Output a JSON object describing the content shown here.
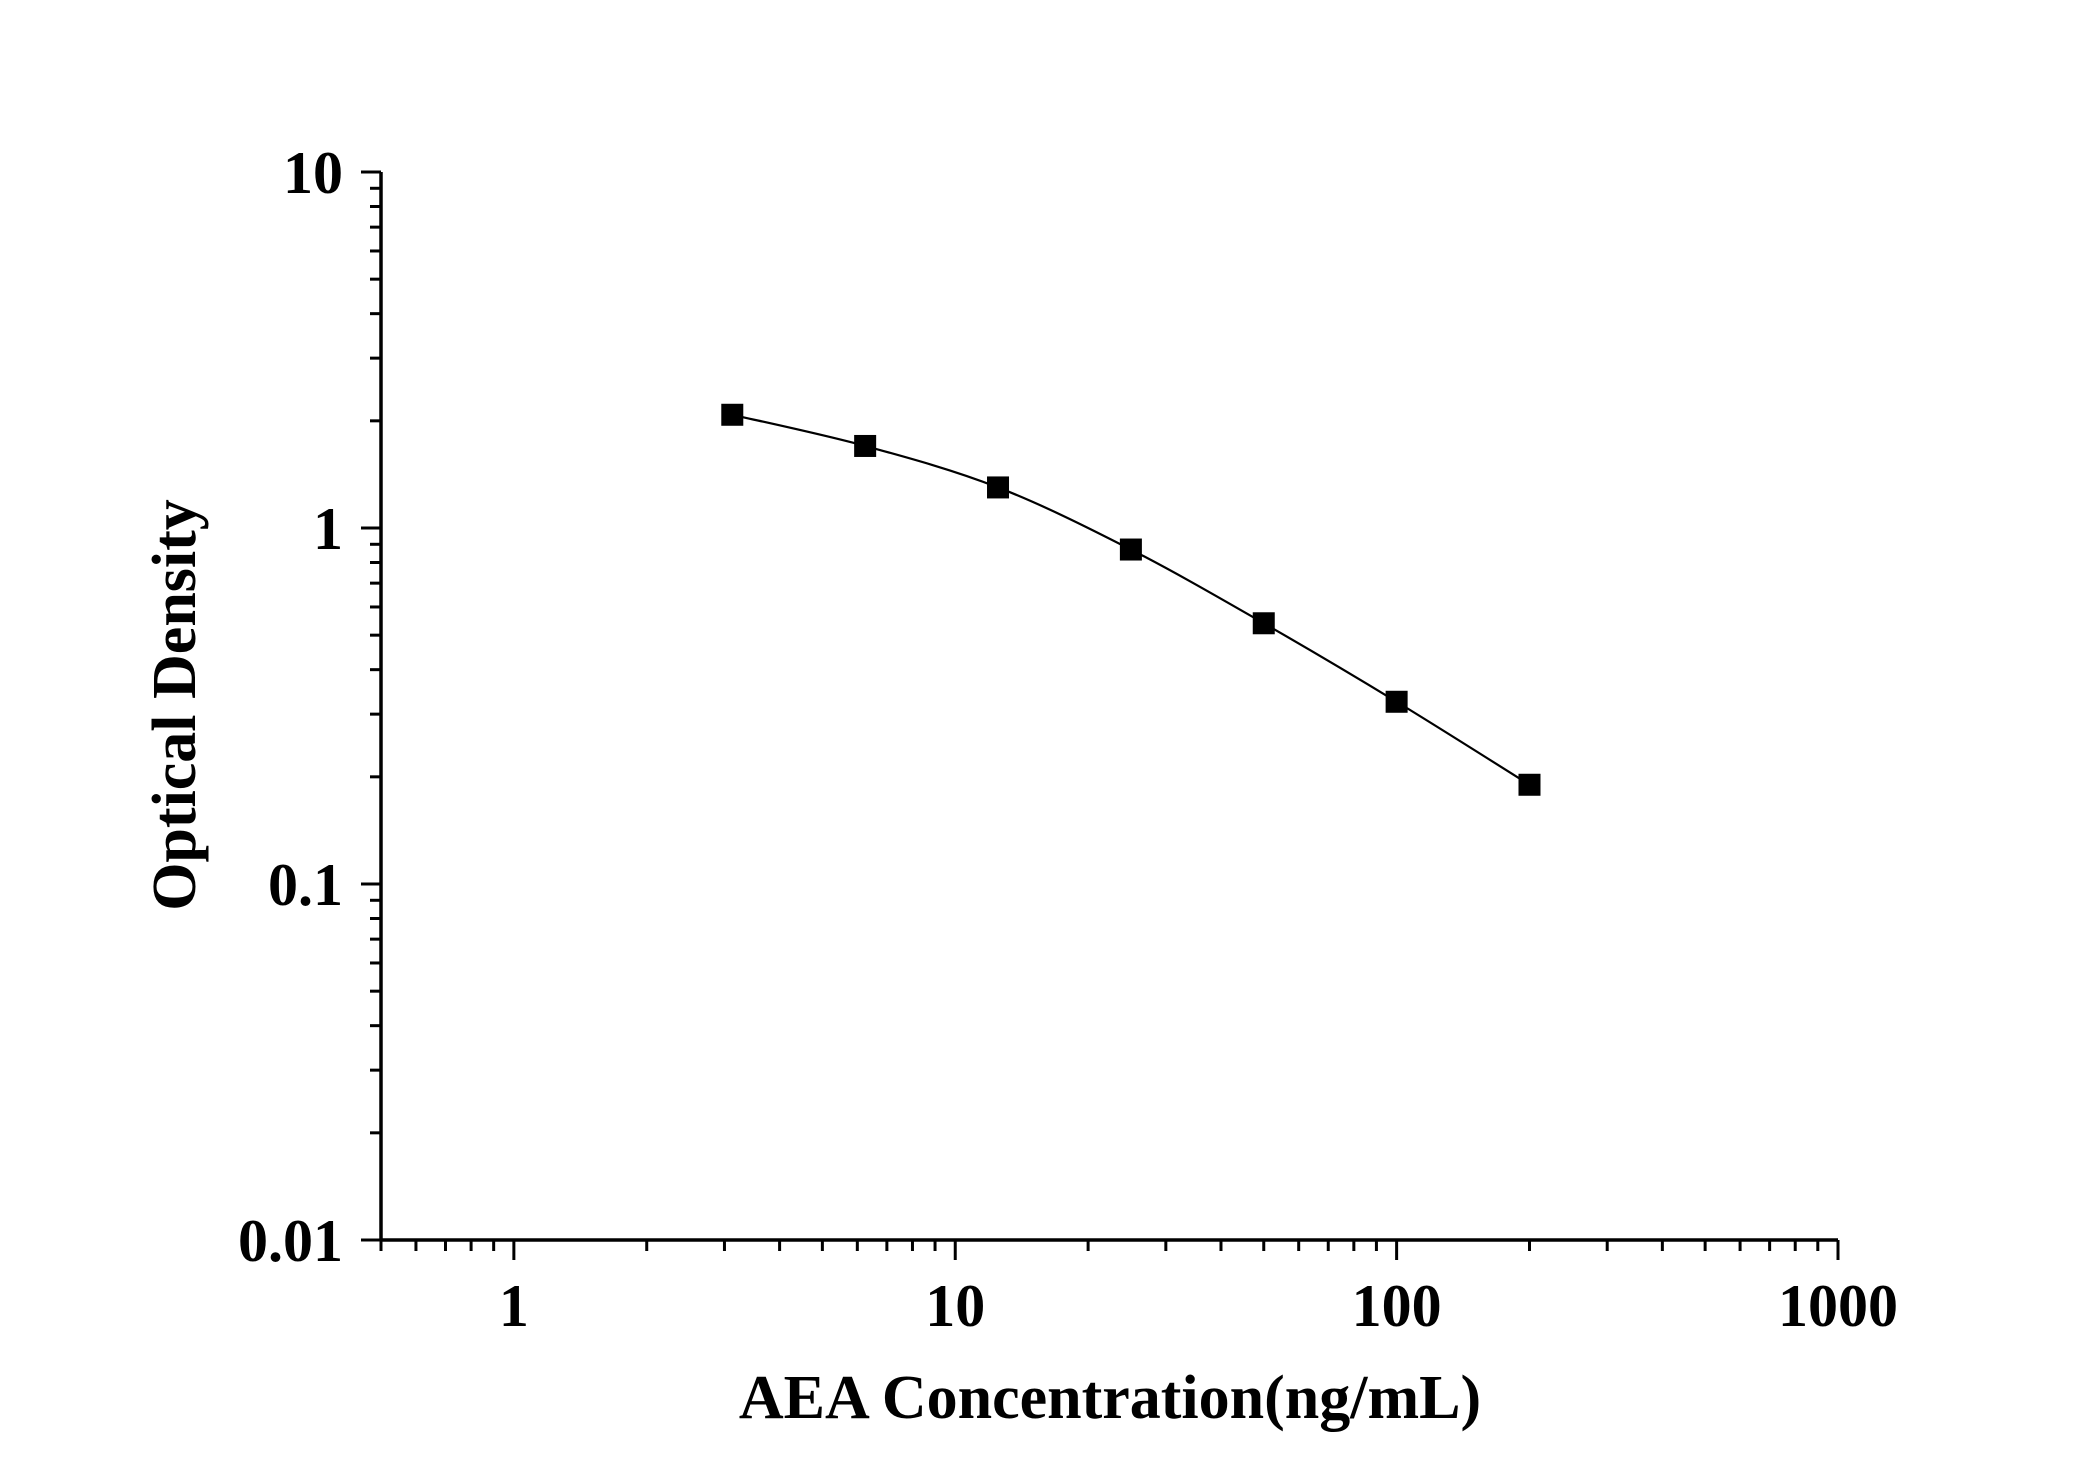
{
  "chart_data": {
    "type": "scatter",
    "title": "",
    "xlabel": "AEA Concentration(ng/mL)",
    "ylabel": "Optical Density",
    "xscale": "log",
    "yscale": "log",
    "xlim": [
      0.5,
      1000
    ],
    "ylim": [
      0.01,
      10
    ],
    "xticks": [
      1,
      10,
      100,
      1000
    ],
    "xtick_labels": [
      "1",
      "10",
      "100",
      "1000"
    ],
    "yticks": [
      0.01,
      0.1,
      1,
      10
    ],
    "ytick_labels": [
      "0.01",
      "0.1",
      "1",
      "10"
    ],
    "grid": false,
    "legend": "none",
    "marker": "square",
    "connected_by_line": true,
    "color": "#000000",
    "series": [
      {
        "x": [
          3.125,
          6.25,
          12.5,
          25,
          50,
          100,
          200
        ],
        "y": [
          2.08,
          1.7,
          1.3,
          0.87,
          0.54,
          0.325,
          0.19
        ]
      }
    ]
  }
}
